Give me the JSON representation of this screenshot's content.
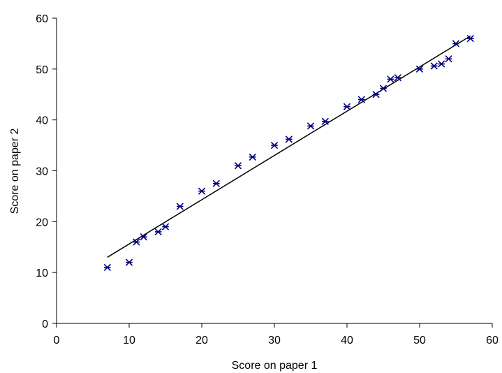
{
  "chart_data": {
    "type": "scatter",
    "title": "",
    "xlabel": "Score on paper 1",
    "ylabel": "Score on paper 2",
    "xlim": [
      0,
      60
    ],
    "ylim": [
      0,
      60
    ],
    "x_ticks": [
      "0",
      "10",
      "20",
      "30",
      "40",
      "50",
      "60"
    ],
    "y_ticks": [
      "0",
      "10",
      "20",
      "30",
      "40",
      "50",
      "60"
    ],
    "grid": false,
    "legend": "none",
    "marker_color": "#000080",
    "trendline_color": "#000000",
    "series": [
      {
        "points": [
          [
            7,
            11
          ],
          [
            10,
            12
          ],
          [
            11,
            16
          ],
          [
            12,
            17
          ],
          [
            14,
            18
          ],
          [
            15,
            19
          ],
          [
            17,
            23
          ],
          [
            20,
            26
          ],
          [
            22,
            27.5
          ],
          [
            25,
            31
          ],
          [
            27,
            32.7
          ],
          [
            30,
            35
          ],
          [
            32,
            36.2
          ],
          [
            35,
            38.8
          ],
          [
            37,
            39.7
          ],
          [
            40,
            42.6
          ],
          [
            42,
            44
          ],
          [
            44,
            45
          ],
          [
            45,
            46.2
          ],
          [
            46,
            48
          ],
          [
            47,
            48.3
          ],
          [
            50,
            50
          ],
          [
            52,
            50.6
          ],
          [
            53,
            51
          ],
          [
            54,
            52
          ],
          [
            55,
            55
          ],
          [
            57,
            56
          ]
        ]
      }
    ],
    "trendline": {
      "x": [
        7,
        57
      ],
      "y": [
        13,
        56.5
      ]
    }
  }
}
